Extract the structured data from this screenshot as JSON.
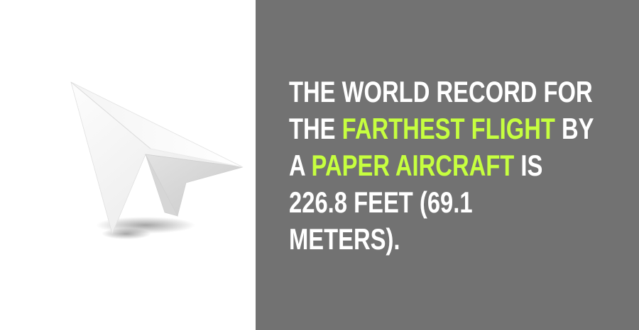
{
  "fact": {
    "line1": "THE WORLD RECORD FOR",
    "line2_pre": "THE ",
    "line2_hl": "FARTHEST FLIGHT",
    "line2_post": " BY",
    "line3_pre": "A ",
    "line3_hl": "PAPER AIRCRAFT",
    "line3_post": " IS",
    "line4": "226.8 FEET (69.1",
    "line5": "METERS)."
  },
  "colors": {
    "background_right": "#727272",
    "background_left": "#ffffff",
    "text": "#ffffff",
    "highlight": "#c6ff3f"
  },
  "illustration": {
    "icon": "paper-plane-icon"
  }
}
